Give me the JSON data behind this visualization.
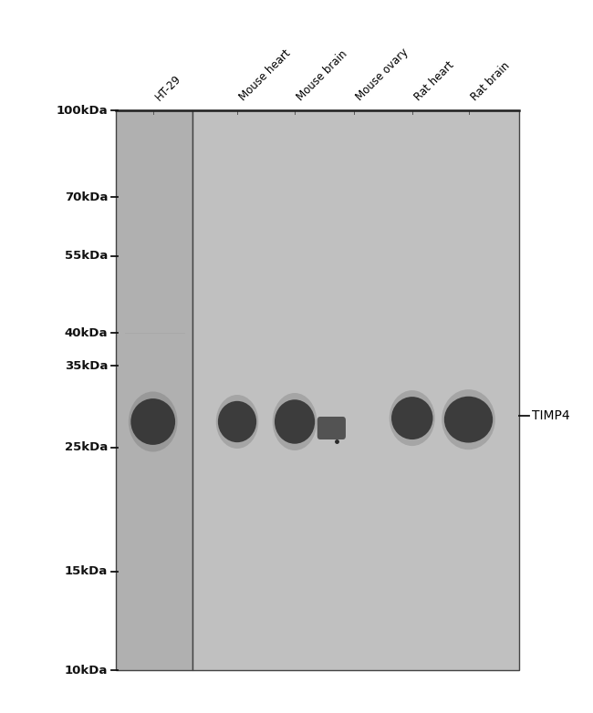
{
  "background_color": "#ffffff",
  "gel1_bg": "#b0b0b0",
  "gel2_bg": "#c0c0c0",
  "border_color": "#444444",
  "band_dark": "#1a1a1a",
  "title_label": "TIMP4",
  "kda_labels": [
    "100kDa",
    "70kDa",
    "55kDa",
    "40kDa",
    "35kDa",
    "25kDa",
    "15kDa",
    "10kDa"
  ],
  "kda_values": [
    100,
    70,
    55,
    40,
    35,
    25,
    15,
    10
  ],
  "lane_labels": [
    "HT-29",
    "Mouse heart",
    "Mouse brain",
    "Mouse ovary",
    "Rat heart",
    "Rat brain"
  ],
  "font_size_kda": 9.5,
  "font_size_lane": 8.5,
  "font_size_timp4": 10
}
